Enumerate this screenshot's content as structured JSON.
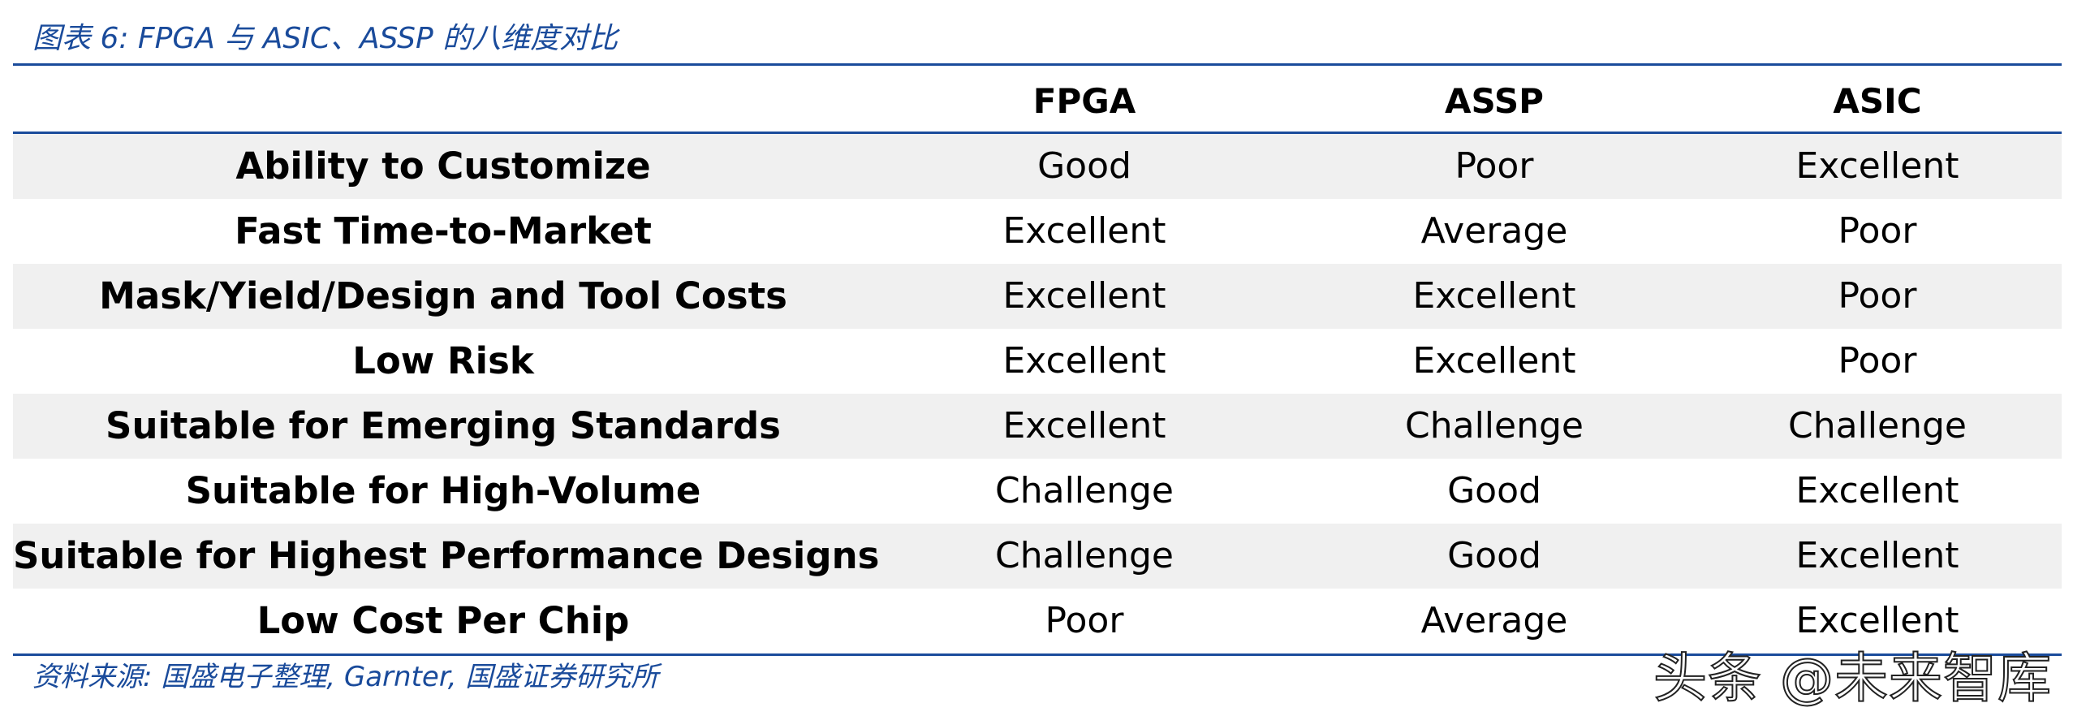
{
  "caption": {
    "title": "图表 6:  FPGA 与 ASIC、ASSP 的八维度对比",
    "source": "资料来源:  国盛电子整理,  Garnter,  国盛证券研究所"
  },
  "table": {
    "headers": [
      "",
      "FPGA",
      "ASSP",
      "ASIC"
    ],
    "rows": [
      [
        "Ability to Customize",
        "Good",
        "Poor",
        "Excellent"
      ],
      [
        "Fast Time-to-Market",
        "Excellent",
        "Average",
        "Poor"
      ],
      [
        "Mask/Yield/Design and Tool Costs",
        "Excellent",
        "Excellent",
        "Poor"
      ],
      [
        "Low Risk",
        "Excellent",
        "Excellent",
        "Poor"
      ],
      [
        "Suitable for Emerging Standards",
        "Excellent",
        "Challenge",
        "Challenge"
      ],
      [
        "Suitable for High-Volume",
        "Challenge",
        "Good",
        "Excellent"
      ],
      [
        "Suitable for Highest Performance Designs",
        "Challenge",
        "Good",
        "Excellent"
      ],
      [
        "Low Cost Per Chip",
        "Poor",
        "Average",
        "Excellent"
      ]
    ]
  },
  "watermark": {
    "text": "头条 @未来智库"
  },
  "colors": {
    "accent": "#1a4b9b",
    "row_alt": "#f0f0f0"
  }
}
